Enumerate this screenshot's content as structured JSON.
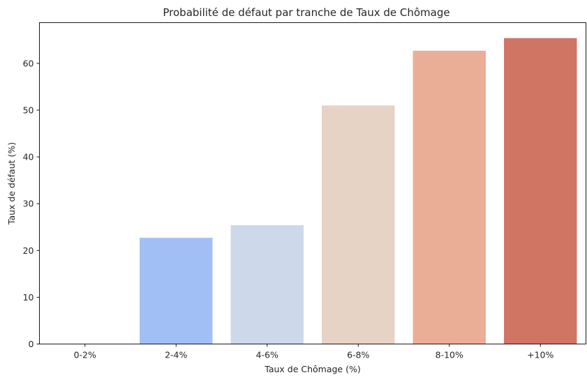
{
  "chart_data": {
    "type": "bar",
    "title": "Probabilité de défaut par tranche de Taux de Chômage",
    "xlabel": "Taux de Chômage (%)",
    "ylabel": "Taux de défaut (%)",
    "categories": [
      "0-2%",
      "2-4%",
      "4-6%",
      "6-8%",
      "8-10%",
      "+10%"
    ],
    "values": [
      0,
      22.7,
      25.4,
      51.0,
      62.7,
      65.4
    ],
    "colors": [
      "#3b4cc0",
      "#a2bff5",
      "#cdd8eb",
      "#e7d2c6",
      "#eaae96",
      "#d07563"
    ],
    "ylim": [
      0,
      68.7
    ],
    "yticks": [
      0,
      10,
      20,
      30,
      40,
      50,
      60
    ],
    "grid": false,
    "legend": "none"
  }
}
